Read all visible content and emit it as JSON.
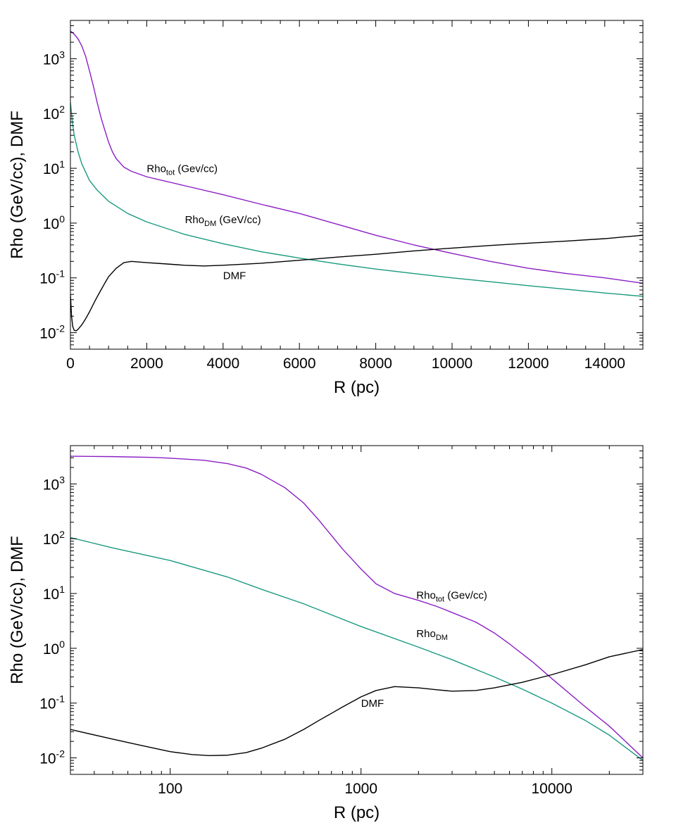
{
  "colors": {
    "total": "#8a1fc4",
    "dm": "#1a9a80",
    "dmf": "#000000"
  },
  "chart_data": [
    {
      "type": "line",
      "x_scale": "linear",
      "y_scale": "log",
      "xlim": [
        0,
        15000
      ],
      "ylim": [
        0.005,
        5000
      ],
      "xlabel": "R (pc)",
      "ylabel": "Rho (GeV/cc),  DMF",
      "x_ticks": [
        "0",
        "2000",
        "4000",
        "6000",
        "8000",
        "10000",
        "12000",
        "14000"
      ],
      "x_tick_values": [
        0,
        2000,
        4000,
        6000,
        8000,
        10000,
        12000,
        14000
      ],
      "y_ticks": [
        {
          "value": 0.01,
          "base": "10",
          "exp": "-2"
        },
        {
          "value": 0.1,
          "base": "10",
          "exp": "-1"
        },
        {
          "value": 1,
          "base": "10",
          "exp": "0"
        },
        {
          "value": 10,
          "base": "10",
          "exp": "1"
        },
        {
          "value": 100,
          "base": "10",
          "exp": "2"
        },
        {
          "value": 1000,
          "base": "10",
          "exp": "3"
        }
      ],
      "series": [
        {
          "name": "Rho_tot",
          "color_key": "total",
          "x": [
            0,
            50,
            100,
            200,
            300,
            400,
            500,
            600,
            700,
            800,
            900,
            1000,
            1100,
            1200,
            1400,
            1600,
            2000,
            3000,
            4000,
            5000,
            6000,
            7000,
            8000,
            9000,
            10000,
            11000,
            12000,
            13000,
            14000,
            15000
          ],
          "y": [
            3200,
            3000,
            2800,
            2300,
            1700,
            1100,
            600,
            320,
            160,
            85,
            50,
            30,
            20,
            15,
            10.5,
            8.8,
            7.0,
            4.8,
            3.3,
            2.2,
            1.5,
            0.95,
            0.6,
            0.4,
            0.28,
            0.2,
            0.15,
            0.12,
            0.1,
            0.08
          ]
        },
        {
          "name": "Rho_DM",
          "color_key": "dm",
          "x": [
            0,
            30,
            50,
            100,
            200,
            300,
            500,
            700,
            1000,
            1500,
            2000,
            3000,
            4000,
            5000,
            6000,
            7000,
            8000,
            9000,
            10000,
            11000,
            12000,
            13000,
            14000,
            15000
          ],
          "y": [
            160,
            100,
            70,
            40,
            20,
            12,
            6,
            4,
            2.5,
            1.5,
            1.05,
            0.62,
            0.42,
            0.3,
            0.23,
            0.18,
            0.145,
            0.12,
            0.1,
            0.085,
            0.072,
            0.062,
            0.053,
            0.046
          ]
        },
        {
          "name": "DMF",
          "color_key": "dmf",
          "x": [
            0,
            30,
            60,
            100,
            150,
            200,
            300,
            400,
            500,
            600,
            700,
            800,
            900,
            1000,
            1200,
            1400,
            1600,
            2000,
            2500,
            3000,
            3500,
            4000,
            5000,
            6000,
            7000,
            8000,
            9000,
            10000,
            11000,
            12000,
            13000,
            14000,
            15000
          ],
          "y": [
            0.05,
            0.02,
            0.013,
            0.011,
            0.0108,
            0.0115,
            0.014,
            0.018,
            0.024,
            0.033,
            0.045,
            0.06,
            0.08,
            0.105,
            0.15,
            0.19,
            0.2,
            0.19,
            0.18,
            0.17,
            0.165,
            0.17,
            0.185,
            0.21,
            0.24,
            0.27,
            0.31,
            0.35,
            0.39,
            0.43,
            0.47,
            0.52,
            0.6
          ]
        }
      ],
      "annotations": [
        {
          "series": "Rho_tot",
          "base": "Rho",
          "sub": "tot",
          "rest": " (Gev/cc)",
          "x": 2000,
          "y": 8.5
        },
        {
          "series": "Rho_DM",
          "base": "Rho",
          "sub": "DM",
          "rest": " (GeV/cc)",
          "x": 3000,
          "y": 1.0
        },
        {
          "series": "DMF",
          "base": "DMF",
          "sub": "",
          "rest": "",
          "x": 4000,
          "y": 0.095
        }
      ]
    },
    {
      "type": "line",
      "x_scale": "log",
      "y_scale": "log",
      "xlim": [
        30,
        30000
      ],
      "ylim": [
        0.005,
        5000
      ],
      "xlabel": "R (pc)",
      "ylabel": "Rho (GeV/cc), DMF",
      "x_ticks": [
        "100",
        "1000",
        "10000"
      ],
      "x_tick_values": [
        100,
        1000,
        10000
      ],
      "y_ticks": [
        {
          "value": 0.01,
          "base": "10",
          "exp": "-2"
        },
        {
          "value": 0.1,
          "base": "10",
          "exp": "-1"
        },
        {
          "value": 1,
          "base": "10",
          "exp": "0"
        },
        {
          "value": 10,
          "base": "10",
          "exp": "1"
        },
        {
          "value": 100,
          "base": "10",
          "exp": "2"
        },
        {
          "value": 1000,
          "base": "10",
          "exp": "3"
        }
      ],
      "series": [
        {
          "name": "Rho_tot",
          "color_key": "total",
          "x": [
            30,
            50,
            80,
            100,
            150,
            200,
            250,
            300,
            400,
            500,
            600,
            800,
            1000,
            1200,
            1500,
            2000,
            2500,
            3000,
            4000,
            5000,
            6000,
            8000,
            10000,
            15000,
            20000,
            30000
          ],
          "y": [
            3200,
            3150,
            3050,
            2950,
            2700,
            2350,
            1950,
            1500,
            850,
            450,
            220,
            65,
            28,
            15,
            10,
            7.5,
            5.8,
            4.5,
            3.0,
            1.9,
            1.2,
            0.55,
            0.28,
            0.085,
            0.038,
            0.01
          ]
        },
        {
          "name": "Rho_DM",
          "color_key": "dm",
          "x": [
            30,
            50,
            100,
            200,
            300,
            500,
            1000,
            2000,
            3000,
            5000,
            7000,
            10000,
            15000,
            20000,
            30000
          ],
          "y": [
            105,
            68,
            40,
            20,
            12,
            6.5,
            2.5,
            1.05,
            0.62,
            0.3,
            0.18,
            0.1,
            0.048,
            0.026,
            0.009
          ]
        },
        {
          "name": "DMF",
          "color_key": "dmf",
          "x": [
            30,
            50,
            70,
            100,
            130,
            160,
            200,
            250,
            300,
            400,
            500,
            600,
            700,
            800,
            1000,
            1200,
            1500,
            2000,
            2500,
            3000,
            4000,
            5000,
            7000,
            10000,
            15000,
            20000,
            30000
          ],
          "y": [
            0.033,
            0.022,
            0.017,
            0.013,
            0.0115,
            0.011,
            0.0112,
            0.0125,
            0.015,
            0.022,
            0.033,
            0.048,
            0.065,
            0.085,
            0.13,
            0.17,
            0.2,
            0.19,
            0.175,
            0.165,
            0.17,
            0.19,
            0.24,
            0.33,
            0.5,
            0.7,
            0.95
          ]
        }
      ],
      "annotations": [
        {
          "series": "Rho_tot",
          "base": "Rho",
          "sub": "tot",
          "rest": " (Gev/cc)",
          "x": 1950,
          "y": 8.0
        },
        {
          "series": "Rho_DM",
          "base": "Rho",
          "sub": "DM",
          "rest": "",
          "x": 1950,
          "y": 1.6
        },
        {
          "series": "DMF",
          "base": "DMF",
          "sub": "",
          "rest": "",
          "x": 1000,
          "y": 0.085
        }
      ]
    }
  ]
}
